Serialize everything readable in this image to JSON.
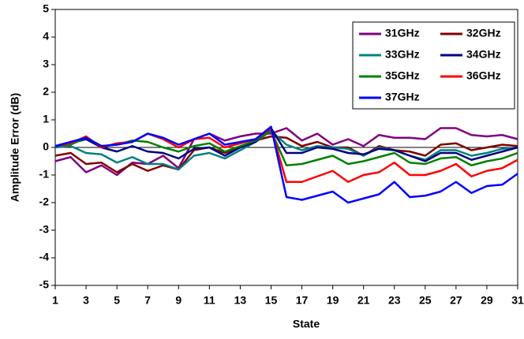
{
  "chart_data": {
    "type": "line",
    "x_label": "State",
    "y_label": "Amplitude Error (dB)",
    "x": [
      1,
      2,
      3,
      4,
      5,
      6,
      7,
      8,
      9,
      10,
      11,
      12,
      13,
      14,
      15,
      16,
      17,
      18,
      19,
      20,
      21,
      22,
      23,
      24,
      25,
      26,
      27,
      28,
      29,
      30,
      31
    ],
    "xlim": [
      1,
      31
    ],
    "xticks": [
      1,
      3,
      5,
      7,
      9,
      11,
      13,
      15,
      17,
      19,
      21,
      23,
      25,
      27,
      29,
      31
    ],
    "ylim": [
      -5,
      5
    ],
    "yticks": [
      -5,
      -4,
      -3,
      -2,
      -1,
      0,
      1,
      2,
      3,
      4,
      5
    ],
    "grid": false,
    "legend": "upper right",
    "series": [
      {
        "name": "31GHz",
        "color": "#800080",
        "values": [
          -0.5,
          -0.35,
          -0.9,
          -0.65,
          -1.0,
          -0.55,
          -0.6,
          -0.3,
          -0.75,
          0.3,
          0.5,
          0.25,
          0.4,
          0.5,
          0.5,
          0.7,
          0.25,
          0.5,
          0.1,
          0.3,
          0.05,
          0.45,
          0.35,
          0.35,
          0.3,
          0.7,
          0.7,
          0.45,
          0.4,
          0.45,
          0.3
        ]
      },
      {
        "name": "32GHz",
        "color": "#800000",
        "values": [
          -0.3,
          -0.2,
          -0.6,
          -0.55,
          -0.9,
          -0.6,
          -0.85,
          -0.65,
          -0.8,
          -0.1,
          0.0,
          -0.2,
          0.0,
          0.25,
          0.4,
          0.35,
          0.05,
          0.2,
          0.0,
          0.0,
          -0.3,
          0.05,
          -0.1,
          -0.15,
          -0.3,
          0.1,
          0.15,
          -0.1,
          0.0,
          0.1,
          0.05
        ]
      },
      {
        "name": "33GHz",
        "color": "#008080",
        "values": [
          0.0,
          0.05,
          -0.2,
          -0.25,
          -0.55,
          -0.35,
          -0.6,
          -0.6,
          -0.8,
          -0.3,
          -0.2,
          -0.4,
          -0.1,
          0.2,
          0.6,
          0.1,
          -0.1,
          0.05,
          0.0,
          -0.05,
          -0.3,
          0.0,
          -0.1,
          -0.3,
          -0.45,
          -0.1,
          -0.1,
          -0.3,
          -0.2,
          -0.05,
          0.0
        ]
      },
      {
        "name": "34GHz",
        "color": "#000080",
        "values": [
          0.05,
          0.15,
          0.3,
          0.0,
          -0.15,
          0.05,
          -0.15,
          -0.2,
          -0.4,
          -0.05,
          0.0,
          -0.3,
          0.0,
          0.2,
          0.7,
          -0.2,
          -0.2,
          0.0,
          -0.05,
          -0.2,
          -0.25,
          -0.05,
          -0.1,
          -0.3,
          -0.5,
          -0.2,
          -0.2,
          -0.45,
          -0.3,
          -0.15,
          0.0
        ]
      },
      {
        "name": "35GHz",
        "color": "#008000",
        "values": [
          0.05,
          0.1,
          0.35,
          0.05,
          0.1,
          0.25,
          0.2,
          0.0,
          -0.15,
          0.05,
          0.15,
          -0.15,
          0.05,
          0.25,
          0.6,
          -0.65,
          -0.6,
          -0.45,
          -0.3,
          -0.6,
          -0.5,
          -0.35,
          -0.2,
          -0.55,
          -0.6,
          -0.4,
          -0.35,
          -0.65,
          -0.5,
          -0.4,
          -0.2
        ]
      },
      {
        "name": "36GHz",
        "color": "#ff0000",
        "values": [
          0.05,
          0.15,
          0.4,
          0.0,
          0.15,
          0.2,
          0.5,
          0.3,
          0.0,
          0.3,
          0.35,
          0.0,
          0.15,
          0.3,
          0.7,
          -1.25,
          -1.25,
          -1.05,
          -0.85,
          -1.25,
          -1.0,
          -0.9,
          -0.55,
          -1.0,
          -1.0,
          -0.85,
          -0.6,
          -1.05,
          -0.85,
          -0.75,
          -0.45
        ]
      },
      {
        "name": "37GHz",
        "color": "#0000ff",
        "values": [
          0.05,
          0.2,
          0.35,
          0.05,
          0.1,
          0.2,
          0.5,
          0.35,
          0.1,
          0.3,
          0.5,
          0.1,
          0.2,
          0.3,
          0.75,
          -1.8,
          -1.9,
          -1.75,
          -1.6,
          -2.0,
          -1.85,
          -1.7,
          -1.25,
          -1.8,
          -1.75,
          -1.6,
          -1.25,
          -1.65,
          -1.4,
          -1.35,
          -0.95
        ]
      }
    ]
  }
}
